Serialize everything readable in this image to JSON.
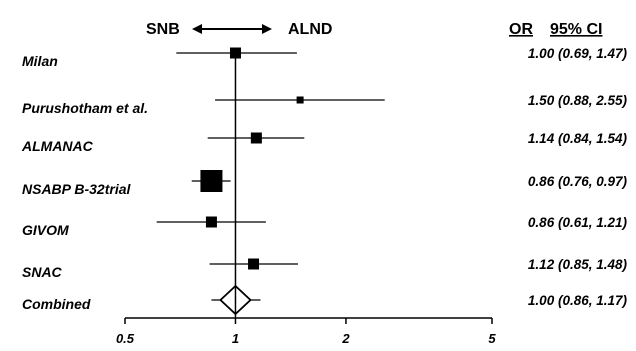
{
  "header": {
    "left_label": "SNB",
    "right_label": "ALND",
    "or_label": "OR",
    "ci_label": "95% CI"
  },
  "chart_data": {
    "type": "forest",
    "title": "",
    "xlabel": "",
    "ylabel": "",
    "x_scale": "log",
    "xlim": [
      0.5,
      5
    ],
    "x_ticks": [
      0.5,
      1,
      2,
      5
    ],
    "x_tick_labels": [
      "0.5",
      "1",
      "2",
      "5"
    ],
    "reference_line": 1,
    "grid": false,
    "studies": [
      {
        "name": "Milan",
        "or": 1.0,
        "lower": 0.69,
        "upper": 1.47,
        "ci_text": "1.00 (0.69, 1.47)",
        "weight": "medium"
      },
      {
        "name": "Purushotham et al.",
        "or": 1.5,
        "lower": 0.88,
        "upper": 2.55,
        "ci_text": "1.50 (0.88, 2.55)",
        "weight": "small"
      },
      {
        "name": "ALMANAC",
        "or": 1.14,
        "lower": 0.84,
        "upper": 1.54,
        "ci_text": "1.14 (0.84, 1.54)",
        "weight": "medium"
      },
      {
        "name": "NSABP B-32trial",
        "or": 0.86,
        "lower": 0.76,
        "upper": 0.97,
        "ci_text": "0.86 (0.76, 0.97)",
        "weight": "large"
      },
      {
        "name": "GIVOM",
        "or": 0.86,
        "lower": 0.61,
        "upper": 1.21,
        "ci_text": "0.86 (0.61, 1.21)",
        "weight": "medium"
      },
      {
        "name": "SNAC",
        "or": 1.12,
        "lower": 0.85,
        "upper": 1.48,
        "ci_text": "1.12 (0.85, 1.48)",
        "weight": "medium"
      }
    ],
    "combined": {
      "name": "Combined",
      "or": 1.0,
      "lower": 0.86,
      "upper": 1.17,
      "ci_text": "1.00 (0.86, 1.17)"
    }
  }
}
